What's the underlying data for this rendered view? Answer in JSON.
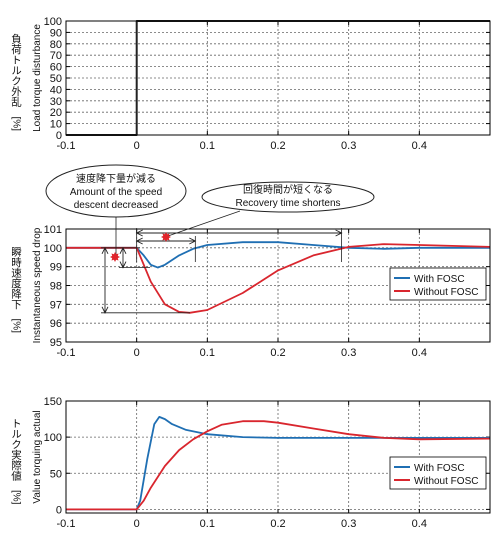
{
  "colors": {
    "with": "#1f6fb3",
    "without": "#d9262e",
    "step": "#222222",
    "annotation_marker": "#e0242b",
    "grid": "#666666"
  },
  "chart_data": [
    {
      "type": "line",
      "ylabel_ja": "負荷トルク外乱",
      "ylabel_en": "Load torque disturbance",
      "yunit": "[%]",
      "xlim": [
        -0.1,
        0.5
      ],
      "ylim": [
        0,
        100
      ],
      "xticks": [
        -0.1,
        0,
        0.1,
        0.2,
        0.3,
        0.4
      ],
      "xtick_labels": [
        "-0.1",
        "0",
        "0.1",
        "0.2",
        "0.3",
        "0.4"
      ],
      "yticks": [
        0,
        10,
        20,
        30,
        40,
        50,
        60,
        70,
        80,
        90,
        100
      ],
      "ytick_labels": [
        "0",
        "10",
        "20",
        "30",
        "40",
        "50",
        "60",
        "70",
        "80",
        "90",
        "100"
      ],
      "grid": true,
      "series": [
        {
          "x": [
            -0.1,
            0.0,
            0.0,
            0.5
          ],
          "y": [
            0,
            0,
            100,
            100
          ]
        }
      ]
    },
    {
      "type": "line",
      "ylabel_ja": "瞬時速度降下",
      "ylabel_en": "Instantaneous speed drop",
      "yunit": "[%]",
      "xlim": [
        -0.1,
        0.5
      ],
      "ylim": [
        95,
        101
      ],
      "xticks": [
        -0.1,
        0,
        0.1,
        0.2,
        0.3,
        0.4
      ],
      "xtick_labels": [
        "-0.1",
        "0",
        "0.1",
        "0.2",
        "0.3",
        "0.4"
      ],
      "yticks": [
        95,
        96,
        97,
        98,
        99,
        100,
        101
      ],
      "ytick_labels": [
        "95",
        "96",
        "97",
        "98",
        "99",
        "100",
        "101"
      ],
      "grid": true,
      "legend": "right",
      "series": [
        {
          "name": "With FOSC",
          "x": [
            -0.1,
            0.0,
            0.01,
            0.02,
            0.03,
            0.04,
            0.06,
            0.08,
            0.1,
            0.15,
            0.2,
            0.25,
            0.3,
            0.35,
            0.4,
            0.5
          ],
          "y": [
            100,
            100,
            99.6,
            99.1,
            98.95,
            99.1,
            99.6,
            99.95,
            100.15,
            100.3,
            100.3,
            100.15,
            100.0,
            99.95,
            100.0,
            100.0
          ]
        },
        {
          "name": "Without FOSC",
          "x": [
            -0.1,
            0.0,
            0.02,
            0.04,
            0.06,
            0.075,
            0.1,
            0.15,
            0.2,
            0.25,
            0.3,
            0.35,
            0.4,
            0.5
          ],
          "y": [
            100,
            100,
            98.2,
            97.0,
            96.6,
            96.55,
            96.7,
            97.6,
            98.8,
            99.6,
            100.05,
            100.2,
            100.15,
            100.05
          ]
        }
      ],
      "annotations": [
        {
          "id": "speed_drop",
          "ja": "速度降下量が減る",
          "en": "Amount of the speed",
          "en2": "descent decreased"
        },
        {
          "id": "recovery",
          "ja": "回復時間が短くなる",
          "en": "Recovery time shortens"
        }
      ]
    },
    {
      "type": "line",
      "ylabel_ja": "トルク実際値",
      "ylabel_en": "Value torquing actual",
      "yunit": "[%]",
      "xlim": [
        -0.1,
        0.5
      ],
      "ylim": [
        -5,
        150
      ],
      "xticks": [
        -0.1,
        0,
        0.1,
        0.2,
        0.3,
        0.4
      ],
      "xtick_labels": [
        "-0.1",
        "0",
        "0.1",
        "0.2",
        "0.3",
        "0.4"
      ],
      "yticks": [
        0,
        50,
        100,
        150
      ],
      "ytick_labels": [
        "0",
        "50",
        "100",
        "150"
      ],
      "grid": true,
      "legend": "right",
      "series": [
        {
          "name": "With FOSC",
          "x": [
            -0.1,
            0.0,
            0.005,
            0.015,
            0.025,
            0.032,
            0.04,
            0.05,
            0.07,
            0.1,
            0.15,
            0.2,
            0.3,
            0.4,
            0.5
          ],
          "y": [
            0,
            0,
            12,
            70,
            118,
            128,
            125,
            118,
            110,
            104,
            100,
            99,
            99,
            99,
            99
          ]
        },
        {
          "name": "Without FOSC",
          "x": [
            -0.1,
            0.0,
            0.01,
            0.02,
            0.04,
            0.06,
            0.08,
            0.1,
            0.12,
            0.15,
            0.18,
            0.2,
            0.25,
            0.3,
            0.35,
            0.4,
            0.5
          ],
          "y": [
            0,
            0,
            12,
            30,
            60,
            82,
            97,
            108,
            117,
            122,
            122,
            120,
            112,
            104,
            99,
            97,
            98
          ]
        }
      ]
    }
  ]
}
